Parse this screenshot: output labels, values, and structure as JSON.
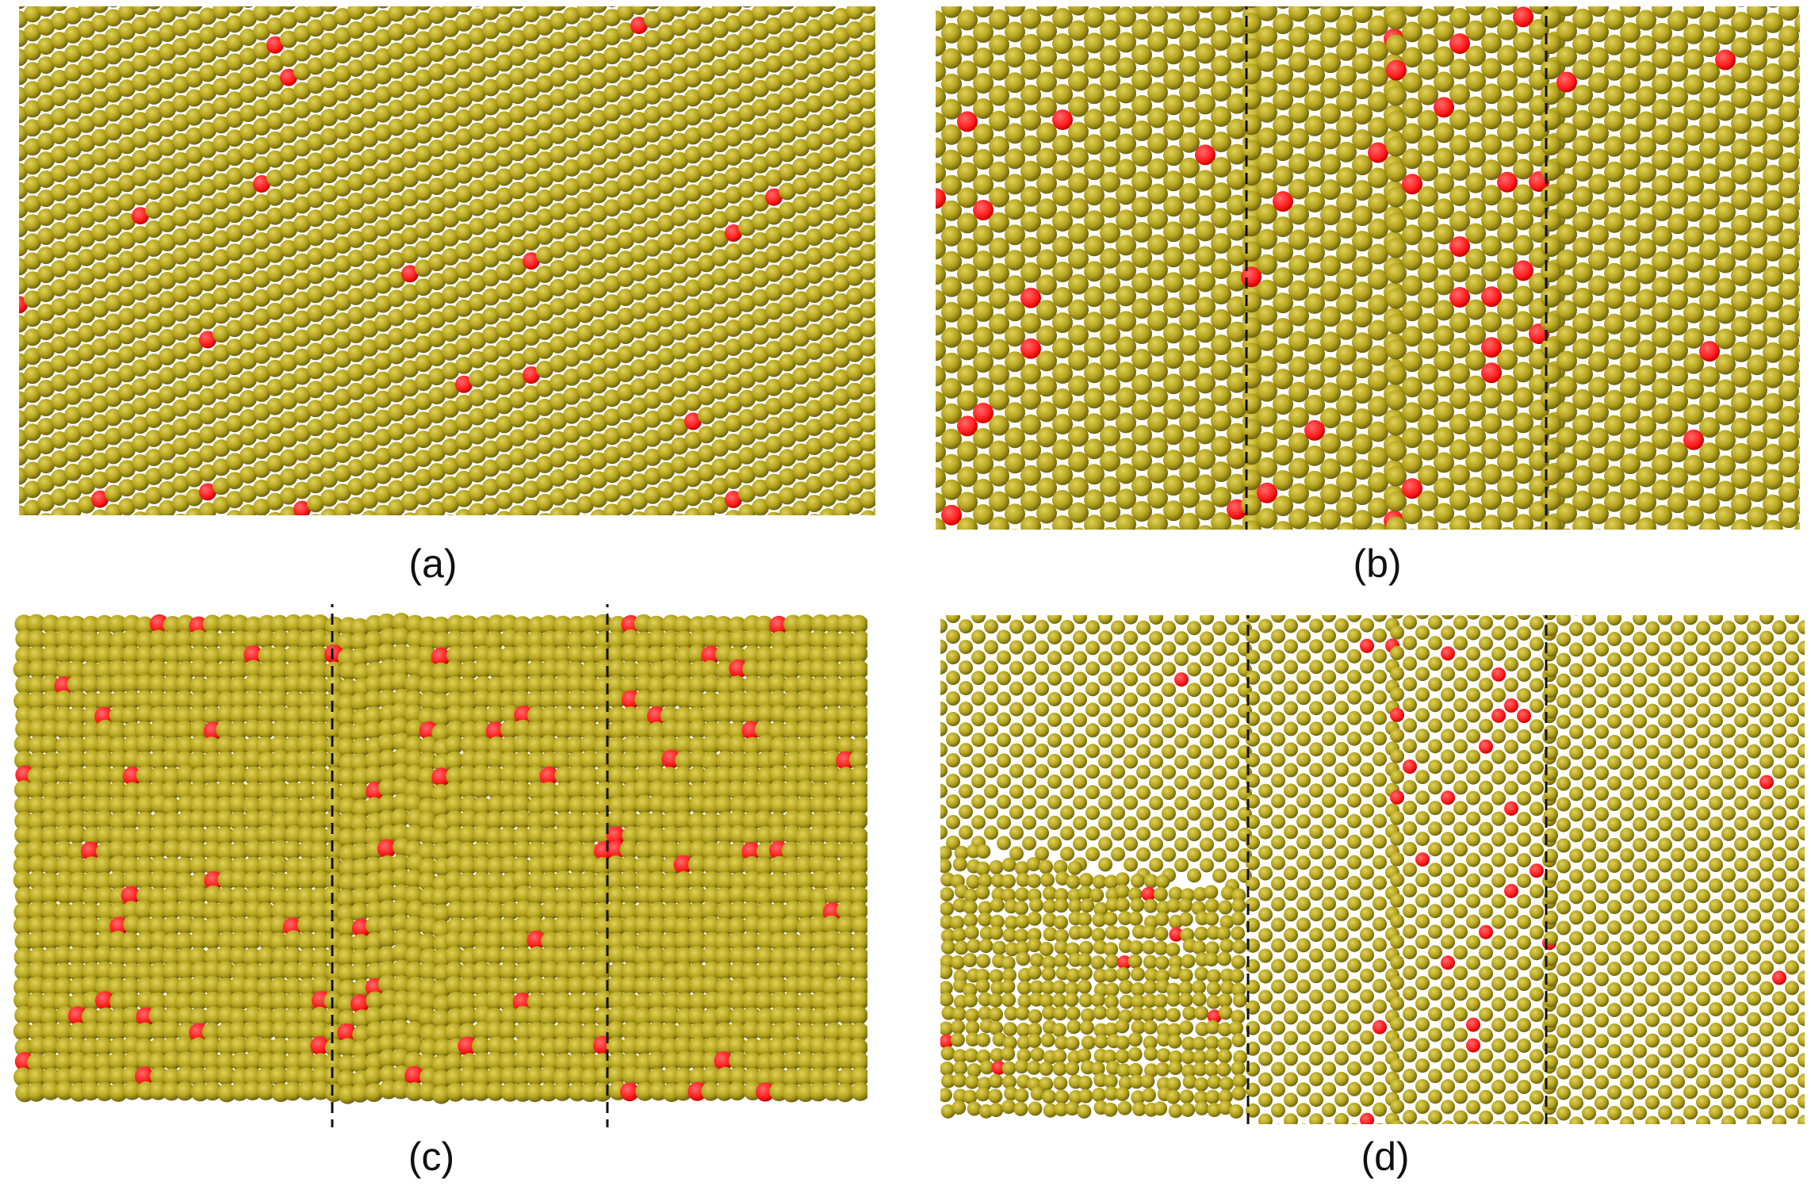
{
  "panels": [
    {
      "id": "a",
      "label": "(a)",
      "structure": "single-crystal"
    },
    {
      "id": "b",
      "label": "(b)",
      "structure": "twinned-chevron"
    },
    {
      "id": "c",
      "label": "(c)",
      "structure": "compressed-boundary"
    },
    {
      "id": "d",
      "label": "(d)",
      "structure": "twinned-chevron-disordered"
    }
  ],
  "colors": {
    "atom": "#b4a31d",
    "atom_edge": "#6f6410",
    "atom_highlight": "#e0d25a",
    "defect": "#ff1a1a",
    "boundary_line": "#111111",
    "background": "#ffffff"
  }
}
